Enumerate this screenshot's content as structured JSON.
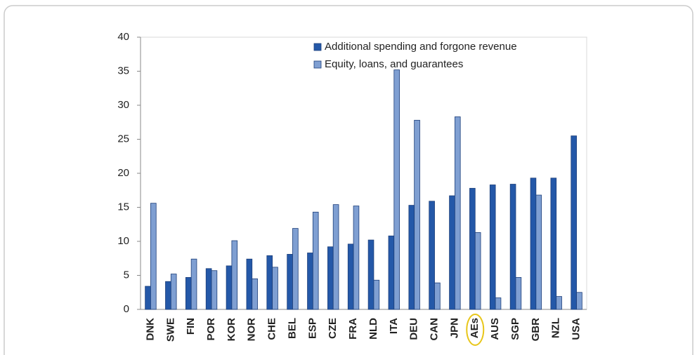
{
  "chart_data": {
    "type": "bar",
    "categories": [
      "DNK",
      "SWE",
      "FIN",
      "POR",
      "KOR",
      "NOR",
      "CHE",
      "BEL",
      "ESP",
      "CZE",
      "FRA",
      "NLD",
      "ITA",
      "DEU",
      "CAN",
      "JPN",
      "AEs",
      "AUS",
      "SGP",
      "GBR",
      "NZL",
      "USA"
    ],
    "series": [
      {
        "name": "Additional spending and forgone revenue",
        "color": "#2458a8",
        "values": [
          3.4,
          4.1,
          4.7,
          6.0,
          6.4,
          7.4,
          7.9,
          8.1,
          8.3,
          9.2,
          9.6,
          10.2,
          10.8,
          15.3,
          15.9,
          16.7,
          17.8,
          18.3,
          18.4,
          19.3,
          19.3,
          25.5
        ]
      },
      {
        "name": "Equity, loans, and guarantees",
        "color": "#7f9fd2",
        "values": [
          15.6,
          5.2,
          7.4,
          5.7,
          10.1,
          4.5,
          6.2,
          11.9,
          14.3,
          15.4,
          15.2,
          4.3,
          35.2,
          27.8,
          3.9,
          28.3,
          11.3,
          1.7,
          4.7,
          16.8,
          1.9,
          2.5
        ]
      }
    ],
    "ylim": [
      0,
      40
    ],
    "yticks": [
      0,
      5,
      10,
      15,
      20,
      25,
      30,
      35,
      40
    ],
    "grid": false
  }
}
